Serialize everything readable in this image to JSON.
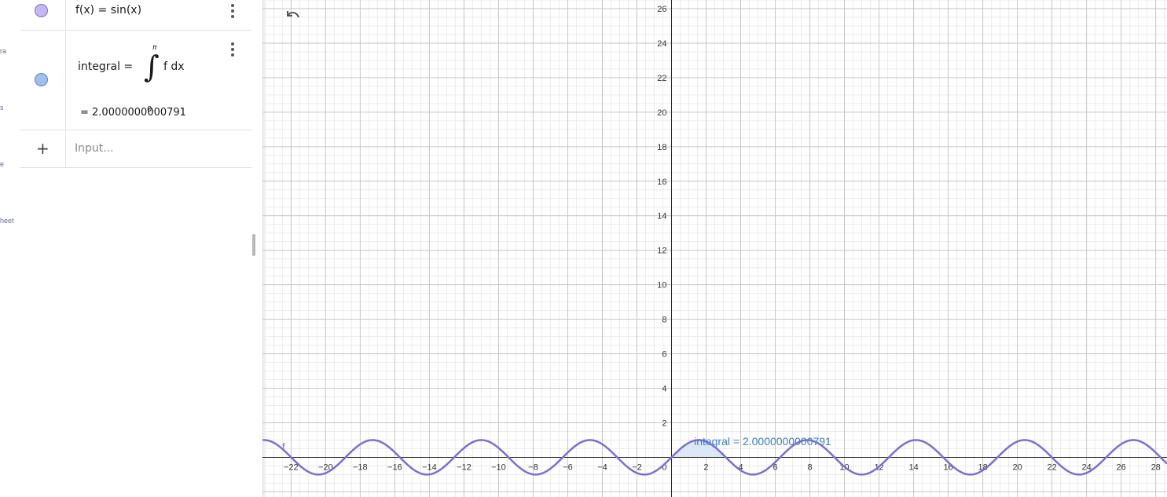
{
  "left_rail": {
    "items": [
      {
        "label": "ra"
      },
      {
        "label": "s"
      },
      {
        "label": "e"
      },
      {
        "label": "heet"
      }
    ]
  },
  "algebra": {
    "f_row": {
      "text": "f(x)  =  sin(x)",
      "color": "#c5b8f2",
      "border": "#7d6fc6"
    },
    "integral_row": {
      "name": "integral  =",
      "upper_limit": "π",
      "lower_limit": "0",
      "integral_sign": "∫",
      "integrand": "f dx",
      "result": "=   2.0000000000791",
      "color": "#9ec1ec",
      "border": "#5a86c3"
    },
    "input_row": {
      "plus": "+",
      "placeholder": "Input..."
    }
  },
  "graph": {
    "function_label": "f",
    "integral_label": "integral = 2.0000000000791",
    "function_color": "#7b6fd6",
    "integral_label_color": "#3f7fc4",
    "shade_color": "#dce8f6",
    "x_range": [
      -23.65,
      28.65
    ],
    "y_range": [
      -2.3,
      26.5
    ],
    "x_ticks": [
      -22,
      -20,
      -18,
      -16,
      -14,
      -12,
      -10,
      -8,
      -6,
      -4,
      -2,
      0,
      2,
      4,
      6,
      8,
      10,
      12,
      14,
      16,
      18,
      20,
      22,
      24,
      26,
      28
    ],
    "y_ticks": [
      2,
      4,
      6,
      8,
      10,
      12,
      14,
      16,
      18,
      20,
      22,
      24,
      26
    ],
    "origin_label": "0"
  }
}
